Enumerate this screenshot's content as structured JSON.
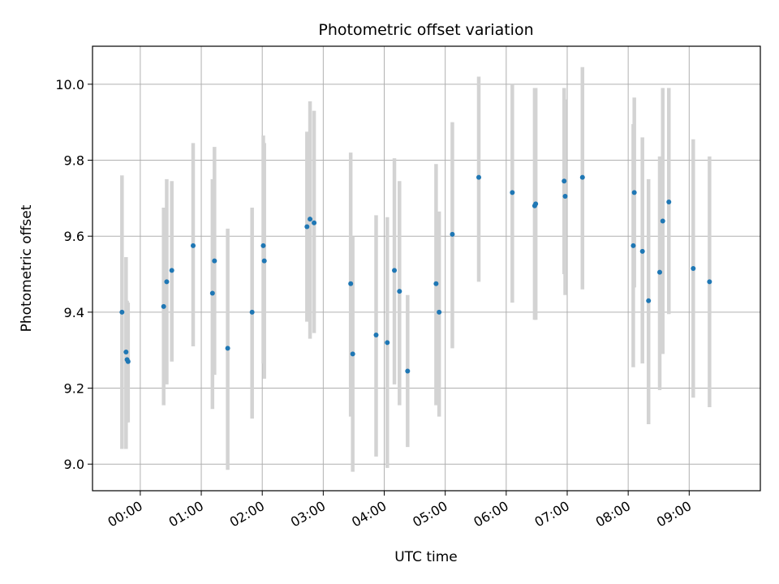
{
  "chart_data": {
    "type": "scatter",
    "title": "Photometric offset variation",
    "xlabel": "UTC time",
    "ylabel": "Photometric offset",
    "xlim": [
      "-00:47",
      "10:10"
    ],
    "ylim": [
      8.93,
      10.1
    ],
    "x_ticks": [
      "00:00",
      "01:00",
      "02:00",
      "03:00",
      "04:00",
      "05:00",
      "06:00",
      "07:00",
      "08:00",
      "09:00"
    ],
    "y_ticks": [
      "9.0",
      "9.2",
      "9.4",
      "9.6",
      "9.8",
      "10.0"
    ],
    "grid": true,
    "colors": {
      "point": "#1f77b4",
      "errorbar": "#d3d3d3",
      "grid": "#b0b0b0"
    },
    "points": [
      {
        "t": "-00:18",
        "y": 9.4,
        "lo": 9.04,
        "hi": 9.76
      },
      {
        "t": "-00:14",
        "y": 9.295,
        "lo": 9.04,
        "hi": 9.545
      },
      {
        "t": "-00:13",
        "y": 9.275,
        "lo": 9.11,
        "hi": 9.43
      },
      {
        "t": "-00:12",
        "y": 9.27,
        "lo": 9.11,
        "hi": 9.425
      },
      {
        "t": "00:23",
        "y": 9.415,
        "lo": 9.155,
        "hi": 9.675
      },
      {
        "t": "00:26",
        "y": 9.48,
        "lo": 9.21,
        "hi": 9.75
      },
      {
        "t": "00:31",
        "y": 9.51,
        "lo": 9.27,
        "hi": 9.745
      },
      {
        "t": "00:52",
        "y": 9.575,
        "lo": 9.31,
        "hi": 9.845
      },
      {
        "t": "01:11",
        "y": 9.45,
        "lo": 9.145,
        "hi": 9.75
      },
      {
        "t": "01:13",
        "y": 9.535,
        "lo": 9.235,
        "hi": 9.835
      },
      {
        "t": "01:26",
        "y": 9.305,
        "lo": 8.985,
        "hi": 9.62
      },
      {
        "t": "01:50",
        "y": 9.4,
        "lo": 9.12,
        "hi": 9.675
      },
      {
        "t": "02:01",
        "y": 9.575,
        "lo": 9.265,
        "hi": 9.865
      },
      {
        "t": "02:02",
        "y": 9.535,
        "lo": 9.225,
        "hi": 9.845
      },
      {
        "t": "02:44",
        "y": 9.625,
        "lo": 9.375,
        "hi": 9.875
      },
      {
        "t": "02:47",
        "y": 9.645,
        "lo": 9.33,
        "hi": 9.955
      },
      {
        "t": "02:51",
        "y": 9.635,
        "lo": 9.345,
        "hi": 9.93
      },
      {
        "t": "03:27",
        "y": 9.475,
        "lo": 9.125,
        "hi": 9.82
      },
      {
        "t": "03:29",
        "y": 9.29,
        "lo": 8.98,
        "hi": 9.6
      },
      {
        "t": "03:52",
        "y": 9.34,
        "lo": 9.02,
        "hi": 9.655
      },
      {
        "t": "04:03",
        "y": 9.32,
        "lo": 8.99,
        "hi": 9.65
      },
      {
        "t": "04:10",
        "y": 9.51,
        "lo": 9.21,
        "hi": 9.805
      },
      {
        "t": "04:15",
        "y": 9.455,
        "lo": 9.155,
        "hi": 9.745
      },
      {
        "t": "04:23",
        "y": 9.245,
        "lo": 9.045,
        "hi": 9.445
      },
      {
        "t": "04:51",
        "y": 9.475,
        "lo": 9.155,
        "hi": 9.79
      },
      {
        "t": "04:54",
        "y": 9.4,
        "lo": 9.125,
        "hi": 9.665
      },
      {
        "t": "05:07",
        "y": 9.605,
        "lo": 9.305,
        "hi": 9.9
      },
      {
        "t": "05:33",
        "y": 9.755,
        "lo": 9.48,
        "hi": 10.02
      },
      {
        "t": "06:06",
        "y": 9.715,
        "lo": 9.425,
        "hi": 10.0
      },
      {
        "t": "06:28",
        "y": 9.68,
        "lo": 9.38,
        "hi": 9.99
      },
      {
        "t": "06:29",
        "y": 9.685,
        "lo": 9.38,
        "hi": 9.99
      },
      {
        "t": "06:57",
        "y": 9.745,
        "lo": 9.5,
        "hi": 9.99
      },
      {
        "t": "06:58",
        "y": 9.705,
        "lo": 9.445,
        "hi": 9.96
      },
      {
        "t": "07:15",
        "y": 9.755,
        "lo": 9.46,
        "hi": 10.045
      },
      {
        "t": "08:05",
        "y": 9.575,
        "lo": 9.255,
        "hi": 9.895
      },
      {
        "t": "08:06",
        "y": 9.715,
        "lo": 9.465,
        "hi": 9.965
      },
      {
        "t": "08:14",
        "y": 9.56,
        "lo": 9.265,
        "hi": 9.86
      },
      {
        "t": "08:20",
        "y": 9.43,
        "lo": 9.105,
        "hi": 9.75
      },
      {
        "t": "08:31",
        "y": 9.505,
        "lo": 9.195,
        "hi": 9.81
      },
      {
        "t": "08:34",
        "y": 9.64,
        "lo": 9.29,
        "hi": 9.99
      },
      {
        "t": "08:40",
        "y": 9.69,
        "lo": 9.395,
        "hi": 9.99
      },
      {
        "t": "09:04",
        "y": 9.515,
        "lo": 9.175,
        "hi": 9.855
      },
      {
        "t": "09:20",
        "y": 9.48,
        "lo": 9.15,
        "hi": 9.81
      }
    ]
  }
}
